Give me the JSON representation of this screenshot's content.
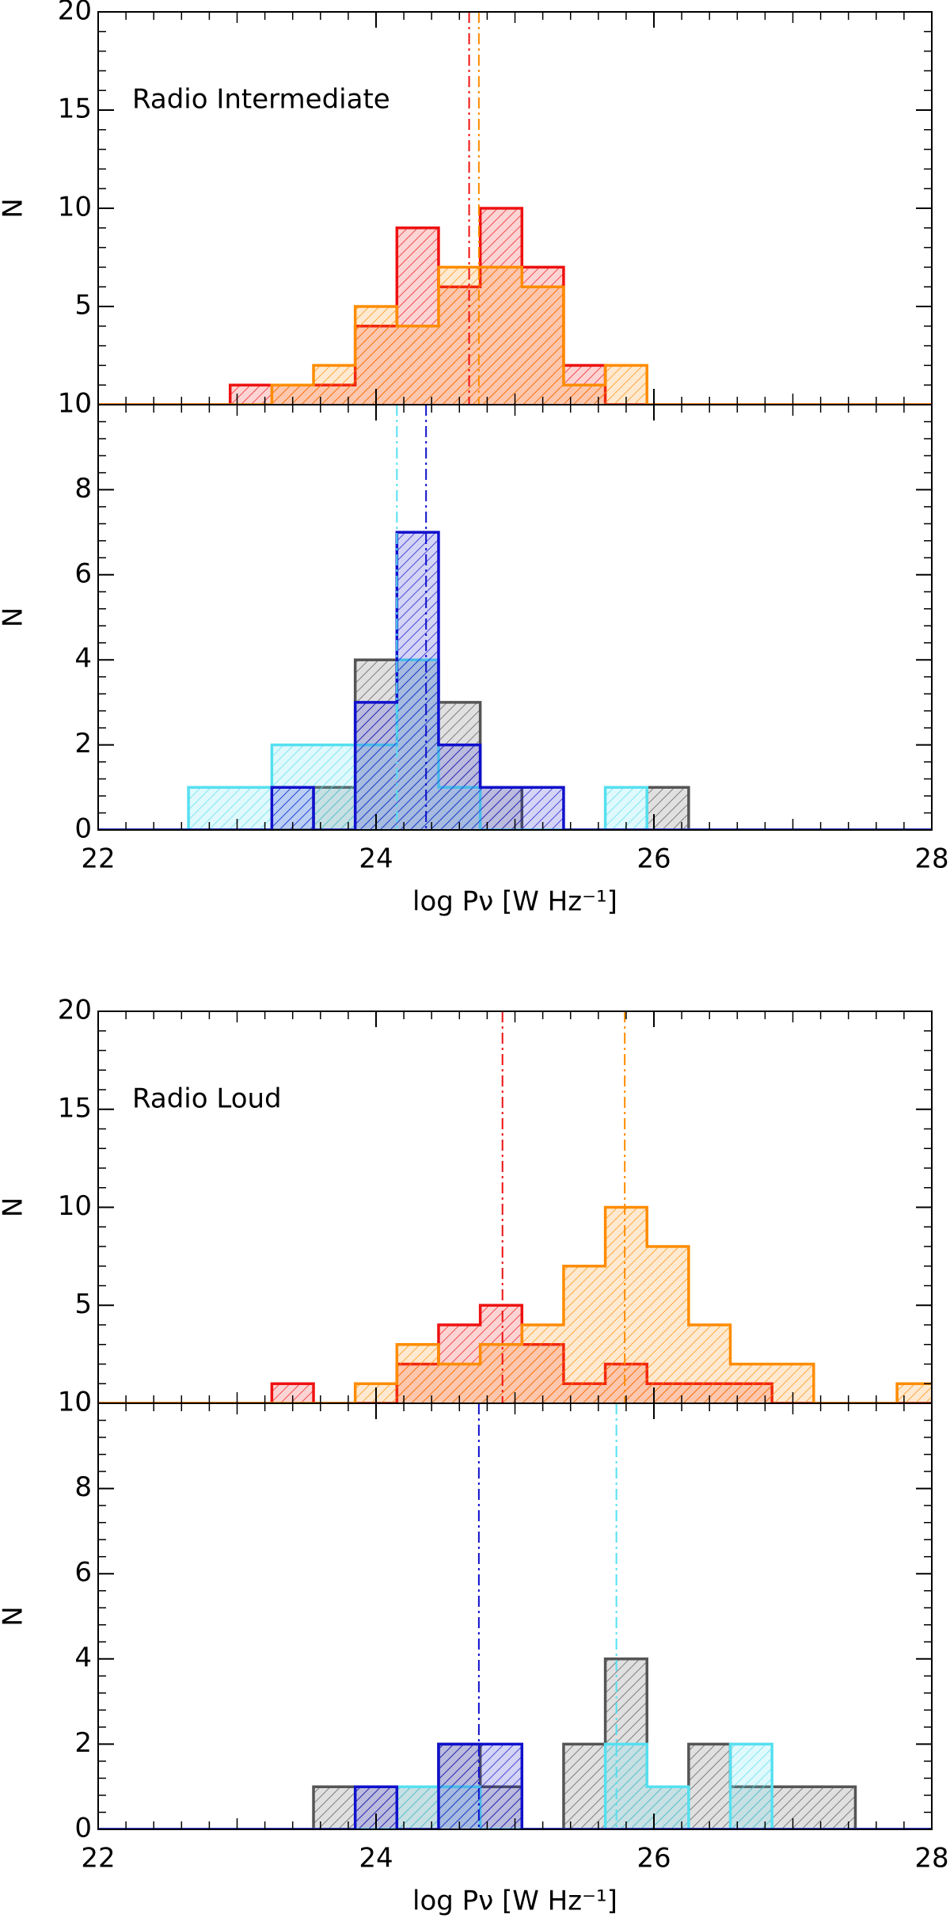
{
  "chart_data": [
    {
      "type": "histogram",
      "annotation": "Radio Intermediate",
      "y_label": "N",
      "bins": [
        22.05,
        22.35,
        22.65,
        22.95,
        23.25,
        23.55,
        23.85,
        24.15,
        24.45,
        24.75,
        25.05,
        25.35,
        25.65,
        25.95,
        26.25,
        26.55,
        26.85,
        27.15,
        27.45,
        27.75,
        28.05
      ],
      "xlim": [
        22,
        28
      ],
      "ylim": [
        0,
        20
      ],
      "yticks": [
        0,
        5,
        10,
        15,
        20
      ],
      "series": [
        {
          "color": "#ee1111",
          "values": [
            0,
            0,
            0,
            1,
            1,
            1,
            4,
            9,
            6,
            10,
            7,
            2,
            0,
            0,
            0,
            0,
            0,
            0,
            0,
            0
          ],
          "median": 24.67
        },
        {
          "color": "#ff8c00",
          "values": [
            0,
            0,
            0,
            0,
            1,
            2,
            5,
            4,
            7,
            7,
            6,
            1,
            2,
            0,
            0,
            0,
            0,
            0,
            0,
            0
          ],
          "median": 24.74
        }
      ]
    },
    {
      "type": "histogram",
      "y_label": "N",
      "x_label": "log Pν [W Hz⁻¹]",
      "bins": [
        22.05,
        22.35,
        22.65,
        22.95,
        23.25,
        23.55,
        23.85,
        24.15,
        24.45,
        24.75,
        25.05,
        25.35,
        25.65,
        25.95,
        26.25,
        26.55,
        26.85,
        27.15,
        27.45,
        27.75,
        28.05
      ],
      "xlim": [
        22,
        28
      ],
      "xticks": [
        22,
        24,
        26,
        28
      ],
      "ylim": [
        0,
        10
      ],
      "yticks": [
        0,
        2,
        4,
        6,
        8,
        10
      ],
      "series": [
        {
          "color": "#555555",
          "values": [
            0,
            0,
            0,
            0,
            0,
            1,
            4,
            4,
            3,
            1,
            0,
            0,
            0,
            1,
            0,
            0,
            0,
            0,
            0,
            0
          ]
        },
        {
          "color": "#55e0f0",
          "values": [
            0,
            0,
            1,
            1,
            2,
            2,
            2,
            4,
            1,
            0,
            0,
            0,
            1,
            0,
            0,
            0,
            0,
            0,
            0,
            0
          ],
          "median": 24.15
        },
        {
          "color": "#1010cc",
          "values": [
            0,
            0,
            0,
            0,
            1,
            0,
            3,
            7,
            2,
            1,
            1,
            0,
            0,
            0,
            0,
            0,
            0,
            0,
            0,
            0
          ],
          "median": 24.36
        }
      ]
    },
    {
      "type": "histogram",
      "annotation": "Radio Loud",
      "y_label": "N",
      "bins": [
        22.05,
        22.35,
        22.65,
        22.95,
        23.25,
        23.55,
        23.85,
        24.15,
        24.45,
        24.75,
        25.05,
        25.35,
        25.65,
        25.95,
        26.25,
        26.55,
        26.85,
        27.15,
        27.45,
        27.75,
        28.05
      ],
      "xlim": [
        22,
        28
      ],
      "ylim": [
        0,
        20
      ],
      "yticks": [
        0,
        5,
        10,
        15,
        20
      ],
      "series": [
        {
          "color": "#ee1111",
          "values": [
            0,
            0,
            0,
            0,
            1,
            0,
            0,
            2,
            4,
            5,
            3,
            1,
            2,
            1,
            1,
            1,
            0,
            0,
            0,
            0
          ],
          "median": 24.91
        },
        {
          "color": "#ff8c00",
          "values": [
            0,
            0,
            0,
            0,
            0,
            0,
            1,
            3,
            2,
            3,
            4,
            7,
            10,
            8,
            4,
            2,
            2,
            0,
            0,
            1
          ],
          "median": 25.79
        }
      ]
    },
    {
      "type": "histogram",
      "y_label": "N",
      "x_label": "log Pν [W Hz⁻¹]",
      "bins": [
        22.05,
        22.35,
        22.65,
        22.95,
        23.25,
        23.55,
        23.85,
        24.15,
        24.45,
        24.75,
        25.05,
        25.35,
        25.65,
        25.95,
        26.25,
        26.55,
        26.85,
        27.15,
        27.45,
        27.75,
        28.05
      ],
      "xlim": [
        22,
        28
      ],
      "xticks": [
        22,
        24,
        26,
        28
      ],
      "ylim": [
        0,
        10
      ],
      "yticks": [
        0,
        2,
        4,
        6,
        8,
        10
      ],
      "series": [
        {
          "color": "#555555",
          "values": [
            0,
            0,
            0,
            0,
            0,
            1,
            1,
            1,
            2,
            1,
            0,
            2,
            4,
            1,
            2,
            1,
            1,
            1,
            0,
            0
          ]
        },
        {
          "color": "#55e0f0",
          "values": [
            0,
            0,
            0,
            0,
            0,
            0,
            0,
            1,
            1,
            0,
            0,
            0,
            2,
            1,
            0,
            2,
            0,
            0,
            0,
            0
          ],
          "median": 25.73
        },
        {
          "color": "#1010cc",
          "values": [
            0,
            0,
            0,
            0,
            0,
            0,
            1,
            0,
            2,
            2,
            0,
            0,
            0,
            0,
            0,
            0,
            0,
            0,
            0,
            0
          ],
          "median": 24.74
        }
      ]
    }
  ]
}
